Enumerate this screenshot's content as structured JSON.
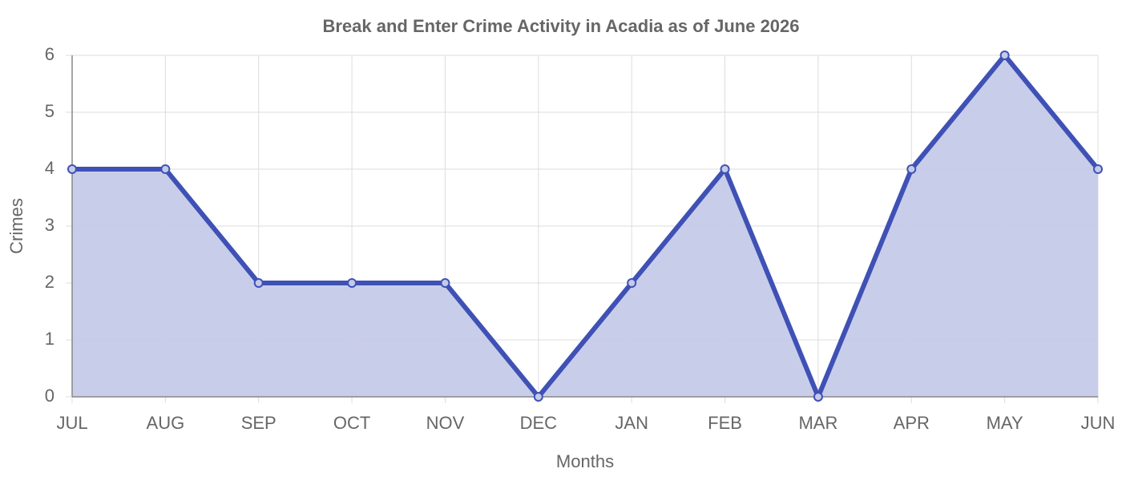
{
  "chart_data": {
    "type": "area",
    "title": "Break and Enter Crime Activity in Acadia as of June 2026",
    "x_label": "Months",
    "y_label": "Crimes",
    "categories": [
      "JUL",
      "AUG",
      "SEP",
      "OCT",
      "NOV",
      "DEC",
      "JAN",
      "FEB",
      "MAR",
      "APR",
      "MAY",
      "JUN"
    ],
    "values": [
      4,
      4,
      2,
      2,
      2,
      0,
      2,
      4,
      0,
      4,
      6,
      4
    ],
    "color": "#3f51b5",
    "fill_color": "#c5cae9",
    "ylim": [
      0,
      6
    ],
    "yticks": [
      0,
      1,
      2,
      3,
      4,
      5,
      6
    ],
    "grid": true
  }
}
